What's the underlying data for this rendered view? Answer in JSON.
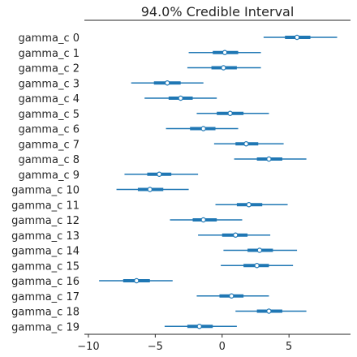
{
  "chart_data": {
    "type": "forest",
    "title": "94.0% Credible Interval",
    "xlim": [
      -10.3,
      9.6
    ],
    "xticks": [
      -10,
      -5,
      0,
      5
    ],
    "xtick_labels": [
      "−10",
      "−5",
      "0",
      "5"
    ],
    "line_color": "#1f77b4",
    "marker_fill": "#ffffff",
    "rows": [
      {
        "label": "gamma_c 0",
        "low": 3.1,
        "q25": 4.7,
        "median": 5.6,
        "q75": 6.6,
        "high": 8.6
      },
      {
        "label": "gamma_c 1",
        "low": -2.5,
        "q25": -0.7,
        "median": 0.2,
        "q75": 1.2,
        "high": 2.9
      },
      {
        "label": "gamma_c 2",
        "low": -2.6,
        "q25": -0.8,
        "median": 0.1,
        "q75": 1.1,
        "high": 2.9
      },
      {
        "label": "gamma_c 3",
        "low": -6.8,
        "q25": -5.1,
        "median": -4.1,
        "q75": -3.1,
        "high": -1.4
      },
      {
        "label": "gamma_c 4",
        "low": -5.8,
        "q25": -4.0,
        "median": -3.1,
        "q75": -2.2,
        "high": -0.4
      },
      {
        "label": "gamma_c 5",
        "low": -1.9,
        "q25": -0.4,
        "median": 0.6,
        "q75": 1.6,
        "high": 3.5
      },
      {
        "label": "gamma_c 6",
        "low": -4.2,
        "q25": -2.4,
        "median": -1.4,
        "q75": -0.5,
        "high": 1.2
      },
      {
        "label": "gamma_c 7",
        "low": -0.6,
        "q25": 1.0,
        "median": 1.8,
        "q75": 2.7,
        "high": 4.6
      },
      {
        "label": "gamma_c 8",
        "low": 0.9,
        "q25": 2.6,
        "median": 3.5,
        "q75": 4.5,
        "high": 6.3
      },
      {
        "label": "gamma_c 9",
        "low": -7.3,
        "q25": -5.6,
        "median": -4.7,
        "q75": -3.8,
        "high": -1.8
      },
      {
        "label": "gamma_c 10",
        "low": -7.9,
        "q25": -6.3,
        "median": -5.4,
        "q75": -4.4,
        "high": -2.5
      },
      {
        "label": "gamma_c 11",
        "low": -0.5,
        "q25": 1.1,
        "median": 2.0,
        "q75": 3.0,
        "high": 4.9
      },
      {
        "label": "gamma_c 12",
        "low": -3.9,
        "q25": -2.2,
        "median": -1.4,
        "q75": -0.4,
        "high": 1.5
      },
      {
        "label": "gamma_c 13",
        "low": -1.8,
        "q25": 0.0,
        "median": 1.0,
        "q75": 1.9,
        "high": 3.6
      },
      {
        "label": "gamma_c 14",
        "low": 0.1,
        "q25": 1.9,
        "median": 2.8,
        "q75": 3.8,
        "high": 5.6
      },
      {
        "label": "gamma_c 15",
        "low": -0.1,
        "q25": 1.6,
        "median": 2.6,
        "q75": 3.5,
        "high": 5.3
      },
      {
        "label": "gamma_c 16",
        "low": -9.2,
        "q25": -7.4,
        "median": -6.4,
        "q75": -5.4,
        "high": -3.7
      },
      {
        "label": "gamma_c 17",
        "low": -1.9,
        "q25": -0.2,
        "median": 0.7,
        "q75": 1.6,
        "high": 3.5
      },
      {
        "label": "gamma_c 18",
        "low": 1.0,
        "q25": 2.6,
        "median": 3.5,
        "q75": 4.5,
        "high": 6.3
      },
      {
        "label": "gamma_c 19",
        "low": -4.3,
        "q25": -2.6,
        "median": -1.7,
        "q75": -0.7,
        "high": 1.1
      }
    ]
  }
}
